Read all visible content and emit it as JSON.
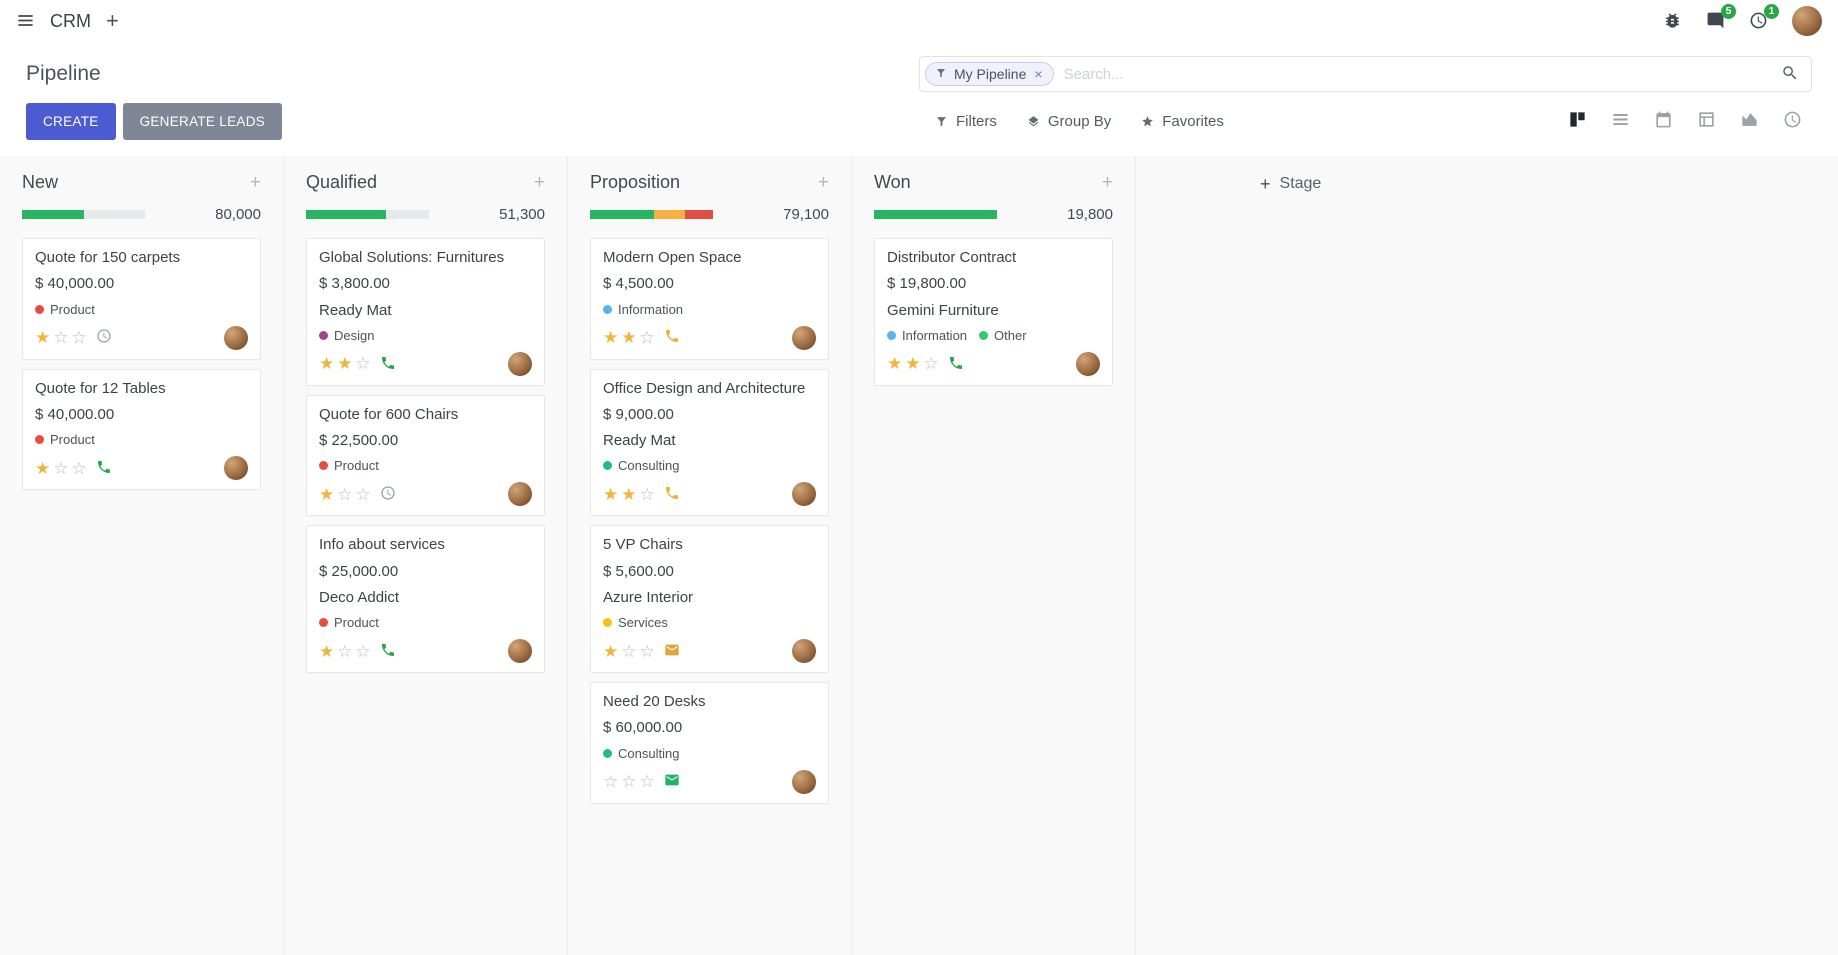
{
  "navbar": {
    "app_name": "CRM",
    "messages_badge": "5",
    "activities_badge": "1"
  },
  "control_panel": {
    "title": "Pipeline",
    "create_label": "CREATE",
    "generate_leads_label": "GENERATE LEADS",
    "search": {
      "facet_label": "My Pipeline",
      "facet_remove_glyph": "×",
      "placeholder": "Search..."
    },
    "filter_menus": [
      {
        "id": "filters",
        "label": "Filters",
        "icon": "filter-icon"
      },
      {
        "id": "group-by",
        "label": "Group By",
        "icon": "layers-icon"
      },
      {
        "id": "favorites",
        "label": "Favorites",
        "icon": "star-icon"
      }
    ],
    "view_switcher": [
      {
        "id": "kanban",
        "icon": "kanban-icon",
        "active": true
      },
      {
        "id": "list",
        "icon": "list-icon",
        "active": false
      },
      {
        "id": "calendar",
        "icon": "calendar-icon",
        "active": false
      },
      {
        "id": "pivot",
        "icon": "pivot-table-icon",
        "active": false
      },
      {
        "id": "graph",
        "icon": "area-chart-icon",
        "active": false
      },
      {
        "id": "activity",
        "icon": "clock-icon",
        "active": false
      }
    ]
  },
  "kanban": {
    "add_column_label": "Stage",
    "columns": [
      {
        "name": "New",
        "total": "80,000",
        "progress_segments": [
          {
            "color": "#28b463",
            "pct": 50
          }
        ],
        "cards": [
          {
            "title": "Quote for 150 carpets",
            "amount": "$ 40,000.00",
            "partner": "",
            "tags": [
              {
                "label": "Product",
                "color": "#e74c3c"
              }
            ],
            "stars": 1,
            "activity": {
              "icon": "clock",
              "color": "#98a0a8"
            }
          },
          {
            "title": "Quote for 12 Tables",
            "amount": "$ 40,000.00",
            "partner": "",
            "tags": [
              {
                "label": "Product",
                "color": "#e74c3c"
              }
            ],
            "stars": 1,
            "activity": {
              "icon": "phone",
              "color": "#28a745"
            }
          }
        ]
      },
      {
        "name": "Qualified",
        "total": "51,300",
        "progress_segments": [
          {
            "color": "#28b463",
            "pct": 65
          }
        ],
        "cards": [
          {
            "title": "Global Solutions: Furnitures",
            "amount": "$ 3,800.00",
            "partner": "Ready Mat",
            "tags": [
              {
                "label": "Design",
                "color": "#a24689"
              }
            ],
            "stars": 2,
            "activity": {
              "icon": "phone",
              "color": "#28a745"
            }
          },
          {
            "title": "Quote for 600 Chairs",
            "amount": "$ 22,500.00",
            "partner": "",
            "tags": [
              {
                "label": "Product",
                "color": "#e74c3c"
              }
            ],
            "stars": 1,
            "activity": {
              "icon": "clock",
              "color": "#98a0a8"
            }
          },
          {
            "title": "Info about services",
            "amount": "$ 25,000.00",
            "partner": "Deco Addict",
            "tags": [
              {
                "label": "Product",
                "color": "#e74c3c"
              }
            ],
            "stars": 1,
            "activity": {
              "icon": "phone",
              "color": "#28a745"
            }
          }
        ]
      },
      {
        "name": "Proposition",
        "total": "79,100",
        "progress_segments": [
          {
            "color": "#28b463",
            "pct": 52
          },
          {
            "color": "#f5b041",
            "pct": 25
          },
          {
            "color": "#e04f43",
            "pct": 23
          }
        ],
        "cards": [
          {
            "title": "Modern Open Space",
            "amount": "$ 4,500.00",
            "partner": "",
            "tags": [
              {
                "label": "Information",
                "color": "#56b5e9"
              }
            ],
            "stars": 2,
            "activity": {
              "icon": "phone",
              "color": "#eab038"
            }
          },
          {
            "title": "Office Design and Architecture",
            "amount": "$ 9,000.00",
            "partner": "Ready Mat",
            "tags": [
              {
                "label": "Consulting",
                "color": "#21b799"
              }
            ],
            "stars": 2,
            "activity": {
              "icon": "phone",
              "color": "#eab038"
            }
          },
          {
            "title": "5 VP Chairs",
            "amount": "$ 5,600.00",
            "partner": "Azure Interior",
            "tags": [
              {
                "label": "Services",
                "color": "#f1c40f"
              }
            ],
            "stars": 1,
            "activity": {
              "icon": "envelope",
              "color": "#e2a33b"
            }
          },
          {
            "title": "Need 20 Desks",
            "amount": "$ 60,000.00",
            "partner": "",
            "tags": [
              {
                "label": "Consulting",
                "color": "#21b799"
              }
            ],
            "stars": 0,
            "activity": {
              "icon": "envelope",
              "color": "#21b36b"
            }
          }
        ]
      },
      {
        "name": "Won",
        "total": "19,800",
        "progress_segments": [
          {
            "color": "#28b463",
            "pct": 100
          }
        ],
        "cards": [
          {
            "title": "Distributor Contract",
            "amount": "$ 19,800.00",
            "partner": "Gemini Furniture",
            "tags": [
              {
                "label": "Information",
                "color": "#56b5e9"
              },
              {
                "label": "Other",
                "color": "#2ecc71"
              }
            ],
            "stars": 2,
            "activity": {
              "icon": "phone",
              "color": "#28a745"
            }
          }
        ]
      }
    ]
  },
  "colors": {
    "primary_button": "#4d5bd0",
    "secondary_button": "#7f8695",
    "badge_green": "#28a745",
    "star_gold": "#f2b53b",
    "progress_green": "#28b463",
    "progress_yellow": "#f5b041",
    "progress_red": "#e04f43"
  }
}
